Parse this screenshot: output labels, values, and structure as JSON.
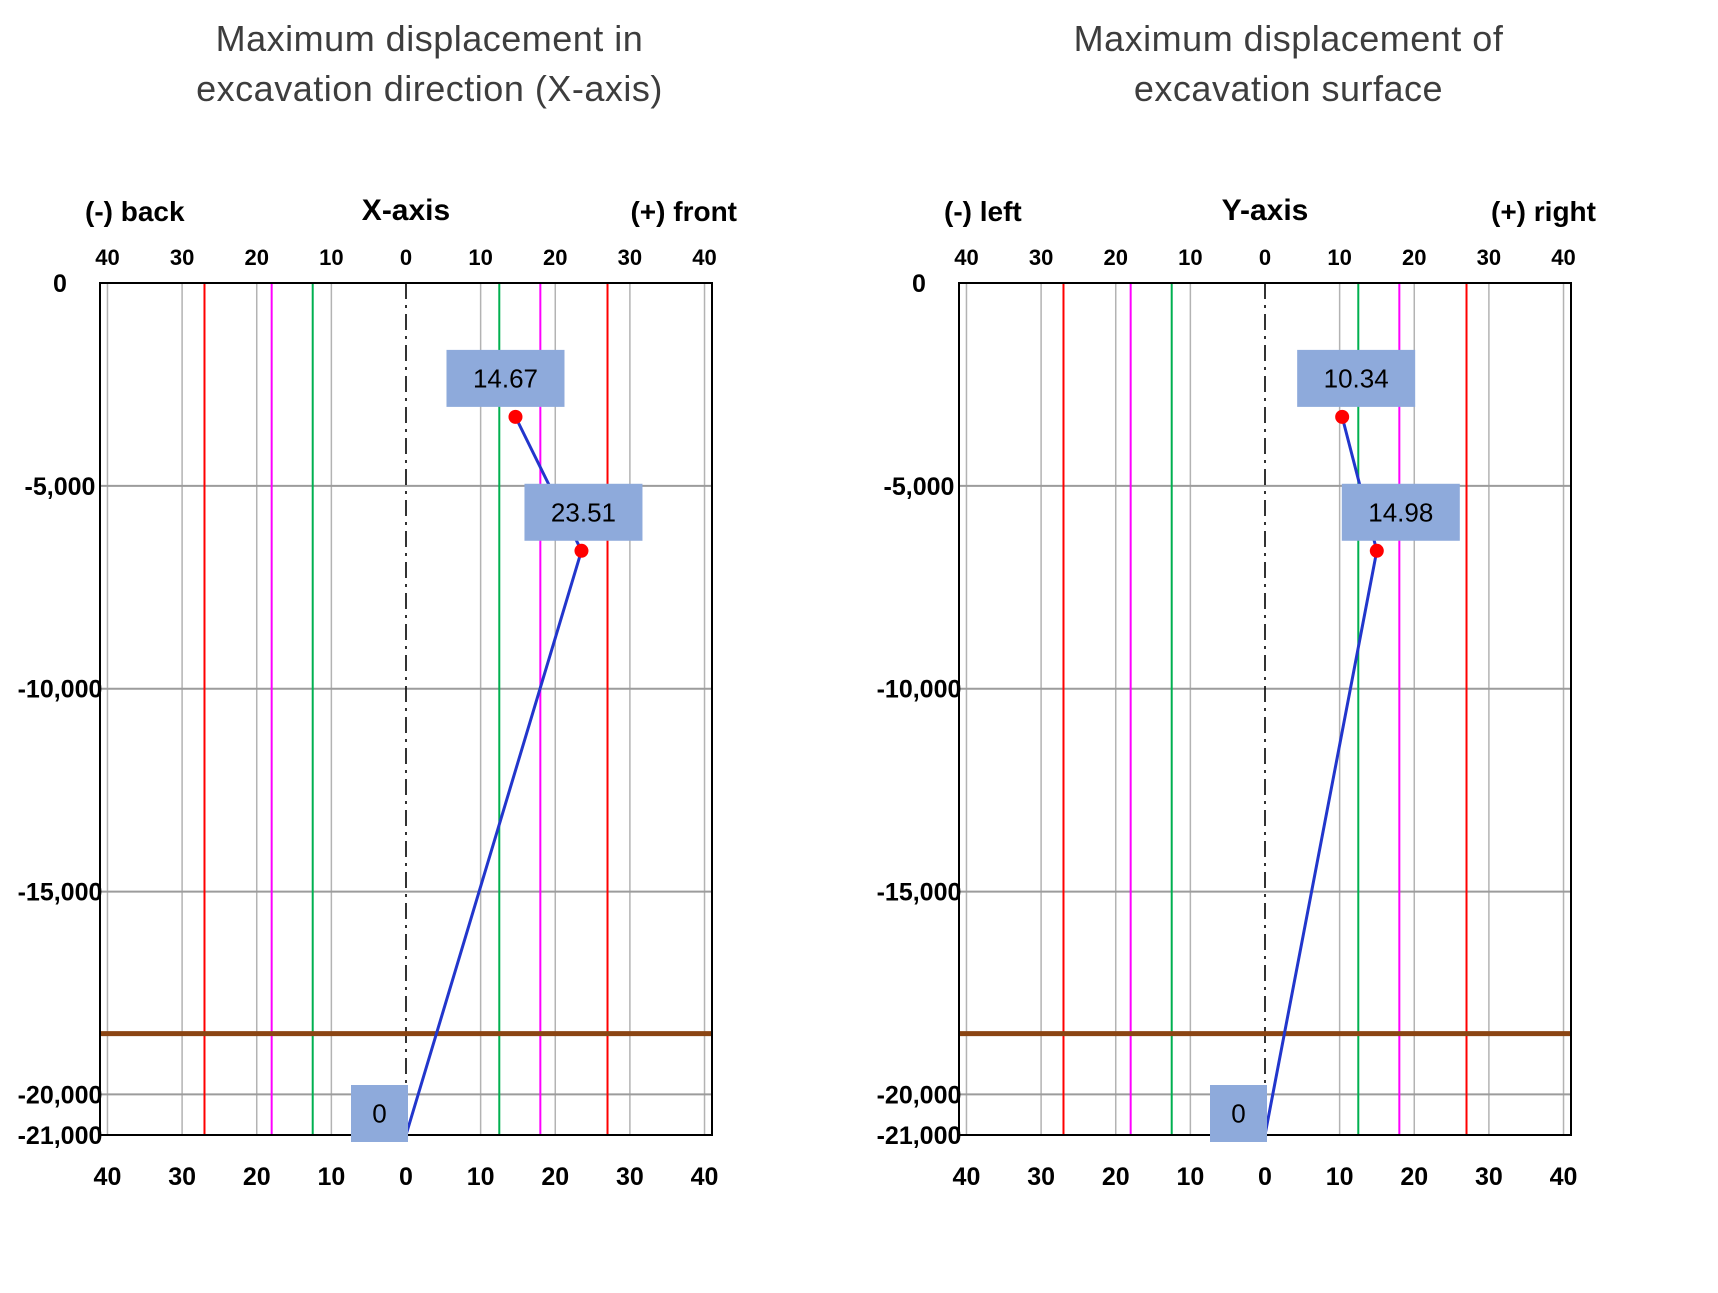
{
  "chart_data": [
    {
      "type": "line",
      "title": "Maximum displacement in excavation direction (X-axis)",
      "title_lines": [
        "Maximum displacement in",
        "excavation direction (X-axis)"
      ],
      "axis_title": "X-axis",
      "direction_labels": {
        "negative": "(-) back",
        "positive": "(+) front"
      },
      "xlim": [
        -41,
        41
      ],
      "ylim": [
        -21000,
        0
      ],
      "x_tick_values": [
        -40,
        -30,
        -20,
        -10,
        0,
        10,
        20,
        30,
        40
      ],
      "x_tick_labels": [
        "40",
        "30",
        "20",
        "10",
        "0",
        "10",
        "20",
        "30",
        "40"
      ],
      "y_tick_values": [
        0,
        -5000,
        -10000,
        -15000,
        -20000,
        -21000
      ],
      "y_tick_labels": [
        "0",
        "-5,000",
        "-10,000",
        "-15,000",
        "-20,000",
        "-21,000"
      ],
      "grid": true,
      "legend": false,
      "series": [
        {
          "name": "max-displacement-profile",
          "color": "#2236CC",
          "points": [
            {
              "x": 0,
              "y": -21000,
              "label": "0",
              "marker": false,
              "label_pos": "left"
            },
            {
              "x": 23.51,
              "y": -6600,
              "label": "23.51",
              "marker": true,
              "label_pos": "above",
              "label_dx": 2
            },
            {
              "x": 14.67,
              "y": -3300,
              "label": "14.67",
              "marker": true,
              "label_pos": "above",
              "label_dx": -10
            }
          ]
        }
      ],
      "reference_lines": {
        "vertical": [
          {
            "x": -27,
            "color": "#FF0000"
          },
          {
            "x": 27,
            "color": "#FF0000"
          },
          {
            "x": -18,
            "color": "#FF00FF"
          },
          {
            "x": 18,
            "color": "#FF00FF"
          },
          {
            "x": -12.5,
            "color": "#00B050"
          },
          {
            "x": 12.5,
            "color": "#00B050"
          },
          {
            "x": 0,
            "color": "#000000",
            "style": "dashdot"
          }
        ],
        "horizontal": [
          {
            "y": -18500,
            "color": "#8B4513",
            "width": 5
          }
        ]
      },
      "styles": {
        "grid_color_v": "#B3B3B3",
        "grid_color_h": "#9C9C9C",
        "marker_color": "#FF0000",
        "label_box_fill": "#8EAADB",
        "label_box_text": "#000000"
      }
    },
    {
      "type": "line",
      "title": "Maximum displacement of excavation surface",
      "title_lines": [
        "Maximum displacement of",
        "excavation surface"
      ],
      "axis_title": "Y-axis",
      "direction_labels": {
        "negative": "(-) left",
        "positive": "(+) right"
      },
      "xlim": [
        -41,
        41
      ],
      "ylim": [
        -21000,
        0
      ],
      "x_tick_values": [
        -40,
        -30,
        -20,
        -10,
        0,
        10,
        20,
        30,
        40
      ],
      "x_tick_labels": [
        "40",
        "30",
        "20",
        "10",
        "0",
        "10",
        "20",
        "30",
        "40"
      ],
      "y_tick_values": [
        0,
        -5000,
        -10000,
        -15000,
        -20000,
        -21000
      ],
      "y_tick_labels": [
        "0",
        "-5,000",
        "-10,000",
        "-15,000",
        "-20,000",
        "-21,000"
      ],
      "grid": true,
      "legend": false,
      "series": [
        {
          "name": "max-displacement-profile",
          "color": "#2236CC",
          "points": [
            {
              "x": 0,
              "y": -21000,
              "label": "0",
              "marker": false,
              "label_pos": "left"
            },
            {
              "x": 14.98,
              "y": -6600,
              "label": "14.98",
              "marker": true,
              "label_pos": "above",
              "label_dx": 24
            },
            {
              "x": 10.34,
              "y": -3300,
              "label": "10.34",
              "marker": true,
              "label_pos": "above",
              "label_dx": 14
            }
          ]
        }
      ],
      "reference_lines": {
        "vertical": [
          {
            "x": -27,
            "color": "#FF0000"
          },
          {
            "x": 27,
            "color": "#FF0000"
          },
          {
            "x": -18,
            "color": "#FF00FF"
          },
          {
            "x": 18,
            "color": "#FF00FF"
          },
          {
            "x": -12.5,
            "color": "#00B050"
          },
          {
            "x": 12.5,
            "color": "#00B050"
          },
          {
            "x": 0,
            "color": "#000000",
            "style": "dashdot"
          }
        ],
        "horizontal": [
          {
            "y": -18500,
            "color": "#8B4513",
            "width": 5
          }
        ]
      },
      "styles": {
        "grid_color_v": "#B3B3B3",
        "grid_color_h": "#9C9C9C",
        "marker_color": "#FF0000",
        "label_box_fill": "#8EAADB",
        "label_box_text": "#000000"
      }
    }
  ]
}
